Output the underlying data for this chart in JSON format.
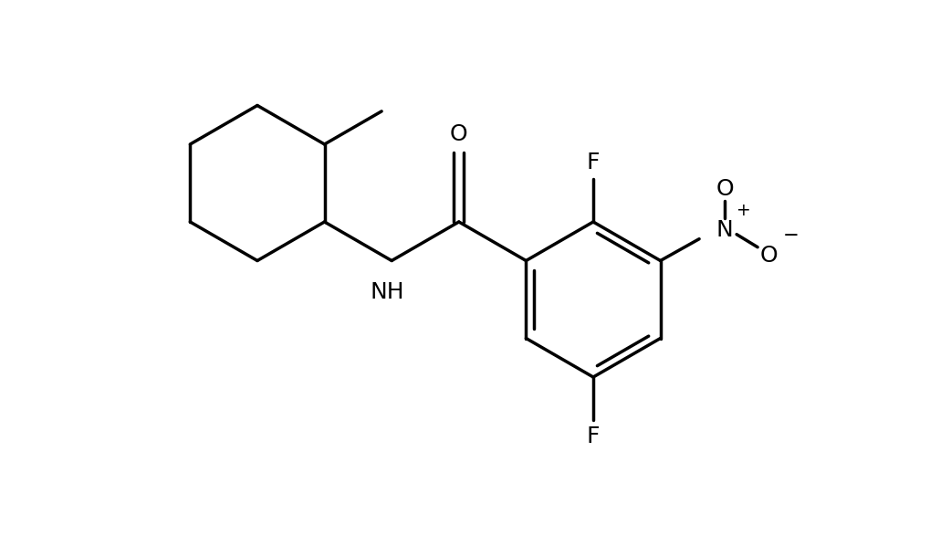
{
  "background_color": "#ffffff",
  "line_color": "#000000",
  "line_width": 2.5,
  "font_size": 18,
  "fig_width": 10.2,
  "fig_height": 5.98,
  "dpi": 100,
  "xlim": [
    0.0,
    10.2
  ],
  "ylim": [
    0.0,
    5.98
  ]
}
